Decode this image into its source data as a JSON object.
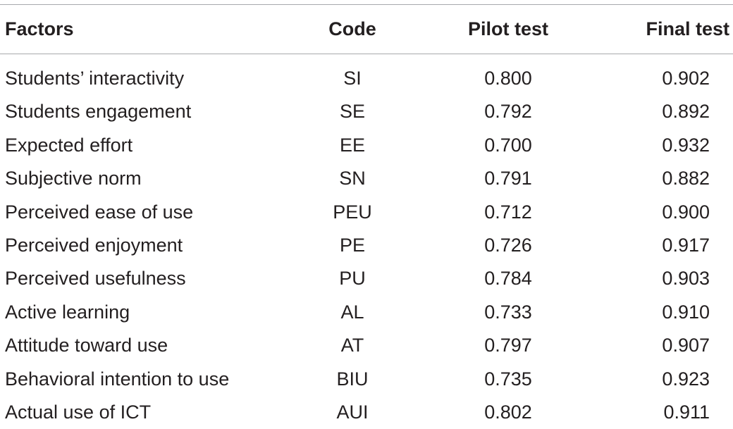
{
  "table": {
    "columns": [
      "Factors",
      "Code",
      "Pilot test",
      "Final test"
    ],
    "rows": [
      {
        "factor": "Students’ interactivity",
        "code": "SI",
        "pilot": "0.800",
        "final": "0.902"
      },
      {
        "factor": "Students engagement",
        "code": "SE",
        "pilot": "0.792",
        "final": "0.892"
      },
      {
        "factor": "Expected effort",
        "code": "EE",
        "pilot": "0.700",
        "final": "0.932"
      },
      {
        "factor": "Subjective norm",
        "code": "SN",
        "pilot": "0.791",
        "final": "0.882"
      },
      {
        "factor": "Perceived ease of use",
        "code": "PEU",
        "pilot": "0.712",
        "final": "0.900"
      },
      {
        "factor": "Perceived enjoyment",
        "code": "PE",
        "pilot": "0.726",
        "final": "0.917"
      },
      {
        "factor": "Perceived usefulness",
        "code": "PU",
        "pilot": "0.784",
        "final": "0.903"
      },
      {
        "factor": "Active learning",
        "code": "AL",
        "pilot": "0.733",
        "final": "0.910"
      },
      {
        "factor": "Attitude toward use",
        "code": "AT",
        "pilot": "0.797",
        "final": "0.907"
      },
      {
        "factor": "Behavioral intention to use",
        "code": "BIU",
        "pilot": "0.735",
        "final": "0.923"
      },
      {
        "factor": "Actual use of ICT",
        "code": "AUI",
        "pilot": "0.802",
        "final": "0.911"
      }
    ]
  }
}
